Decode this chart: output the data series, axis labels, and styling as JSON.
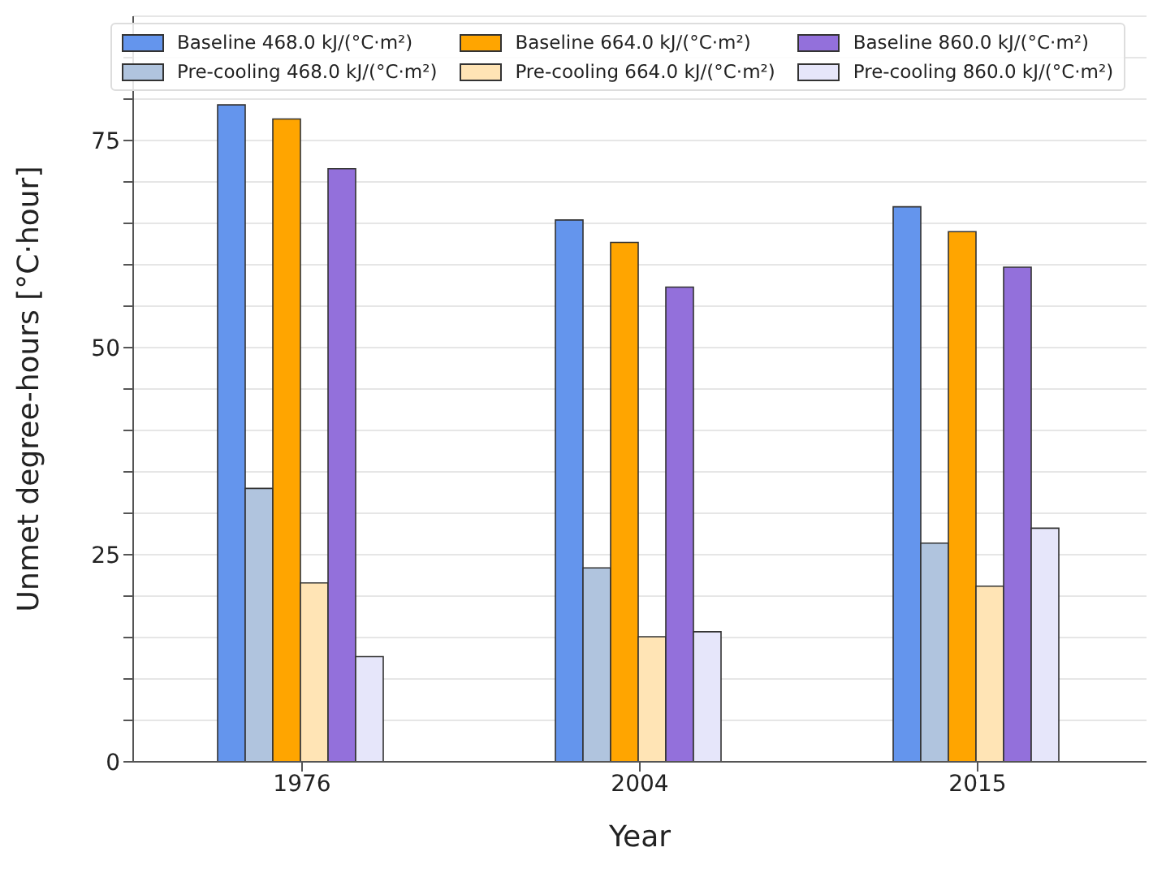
{
  "chart_data": {
    "type": "bar",
    "xlabel": "Year",
    "ylabel": "Unmet degree-hours [°C·hour]",
    "categories": [
      "1976",
      "2004",
      "2015"
    ],
    "series": [
      {
        "name": "Baseline 468.0 kJ/(°C·m²)",
        "color": "#6495ed",
        "values": [
          79.3,
          65.4,
          67.0
        ]
      },
      {
        "name": "Pre-cooling 468.0 kJ/(°C·m²)",
        "color": "#b0c4de",
        "values": [
          33.0,
          23.4,
          26.4
        ]
      },
      {
        "name": "Baseline 664.0 kJ/(°C·m²)",
        "color": "#ffa500",
        "values": [
          77.6,
          62.7,
          64.0
        ]
      },
      {
        "name": "Pre-cooling 664.0 kJ/(°C·m²)",
        "color": "#ffe4b5",
        "values": [
          21.6,
          15.1,
          21.2
        ]
      },
      {
        "name": "Baseline 860.0 kJ/(°C·m²)",
        "color": "#9370db",
        "values": [
          71.6,
          57.3,
          59.7
        ]
      },
      {
        "name": "Pre-cooling 860.0 kJ/(°C·m²)",
        "color": "#e6e6fa",
        "values": [
          12.7,
          15.7,
          28.2
        ]
      }
    ],
    "ylim": [
      0,
      90
    ],
    "yticks": [
      0,
      {
        "value": 5,
        "label": null
      },
      {
        "value": 10,
        "label": null
      },
      {
        "value": 15,
        "label": null
      },
      {
        "value": 20,
        "label": null
      },
      25,
      {
        "value": 30,
        "label": null
      },
      {
        "value": 35,
        "label": null
      },
      {
        "value": 40,
        "label": null
      },
      {
        "value": 45,
        "label": null
      },
      50,
      {
        "value": 55,
        "label": null
      },
      {
        "value": 60,
        "label": null
      },
      {
        "value": 65,
        "label": null
      },
      {
        "value": 70,
        "label": null
      },
      75,
      {
        "value": 80,
        "label": null
      },
      {
        "value": 85,
        "label": null
      }
    ],
    "grid": "y",
    "legend": "top"
  }
}
